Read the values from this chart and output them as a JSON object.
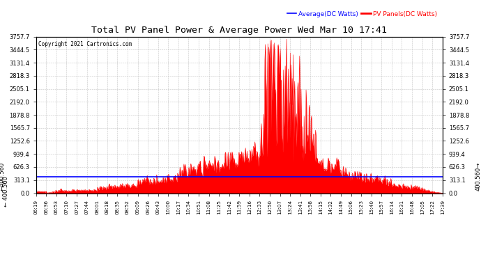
{
  "title": "Total PV Panel Power & Average Power Wed Mar 10 17:41",
  "copyright": "Copyright 2021 Cartronics.com",
  "legend_avg": "Average(DC Watts)",
  "legend_pv": "PV Panels(DC Watts)",
  "avg_value": 400.56,
  "ymax": 3757.7,
  "ymin": 0.0,
  "yticks": [
    0.0,
    313.1,
    626.3,
    939.4,
    1252.6,
    1565.7,
    1878.8,
    2192.0,
    2505.1,
    2818.3,
    3131.4,
    3444.5,
    3757.7
  ],
  "xtick_labels": [
    "06:19",
    "06:36",
    "06:53",
    "07:10",
    "07:27",
    "07:44",
    "08:01",
    "08:18",
    "08:35",
    "08:52",
    "09:09",
    "09:26",
    "09:43",
    "10:00",
    "10:17",
    "10:34",
    "10:51",
    "11:08",
    "11:25",
    "11:42",
    "11:59",
    "12:16",
    "12:33",
    "12:50",
    "13:07",
    "13:24",
    "13:41",
    "13:58",
    "14:15",
    "14:32",
    "14:49",
    "15:06",
    "15:23",
    "15:40",
    "15:57",
    "16:14",
    "16:31",
    "16:48",
    "17:05",
    "17:22",
    "17:39"
  ],
  "background_color": "#ffffff",
  "plot_bg_color": "#ffffff",
  "grid_color": "#aaaaaa",
  "fill_color": "#ff0000",
  "line_color": "#ff0000",
  "avg_line_color": "#0000ff",
  "title_color": "#000000",
  "copyright_color": "#000000",
  "legend_avg_color": "#0000ff",
  "legend_pv_color": "#ff0000"
}
